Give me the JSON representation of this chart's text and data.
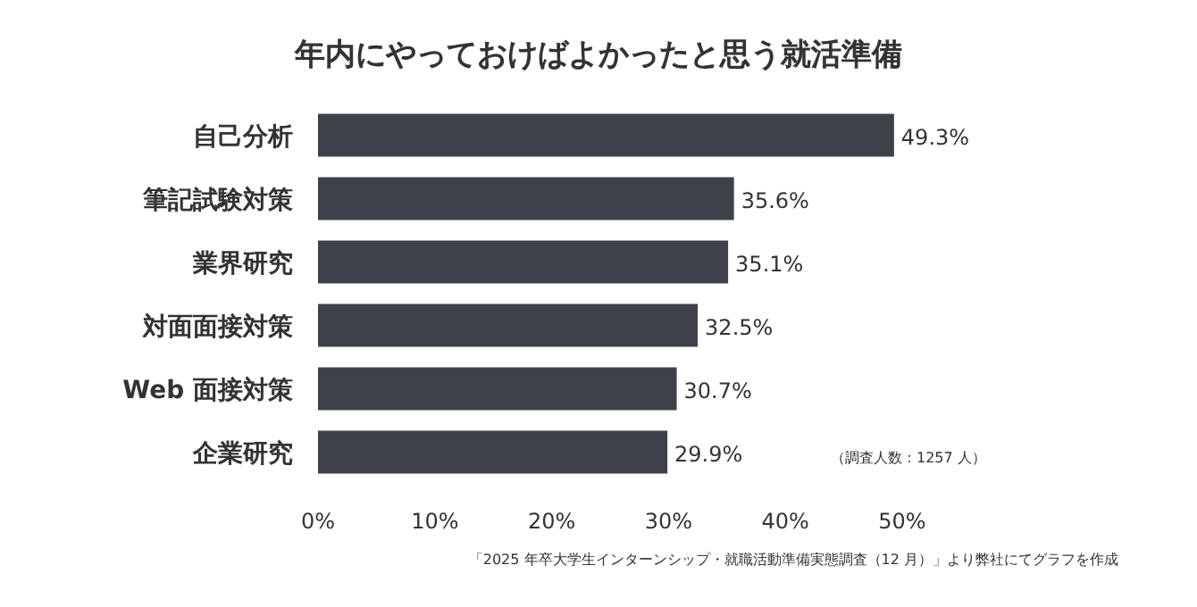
{
  "chart_data": {
    "type": "bar",
    "orientation": "horizontal",
    "title": "年内にやっておけばよかったと思う就活準備",
    "categories": [
      "自己分析",
      "筆記試験対策",
      "業界研究",
      "対面面接対策",
      "Web 面接対策",
      "企業研究"
    ],
    "values": [
      49.3,
      35.6,
      35.1,
      32.5,
      30.7,
      29.9
    ],
    "value_labels": [
      "49.3%",
      "35.6%",
      "35.1%",
      "32.5%",
      "30.7%",
      "29.9%"
    ],
    "color": "#3d4149",
    "xlim": [
      0,
      50
    ],
    "xticks": [
      {
        "value": 0,
        "label": "0%"
      },
      {
        "value": 10,
        "label": "10%"
      },
      {
        "value": 20,
        "label": "20%"
      },
      {
        "value": 30,
        "label": "30%"
      },
      {
        "value": 40,
        "label": "40%"
      },
      {
        "value": 50,
        "label": "50%"
      }
    ],
    "annotations": [
      "（調査人数：1257 人）",
      "「2025 年卒大学生インターンシップ・就職活動準備実態調査（12 月）」より弊社にてグラフを作成"
    ]
  }
}
